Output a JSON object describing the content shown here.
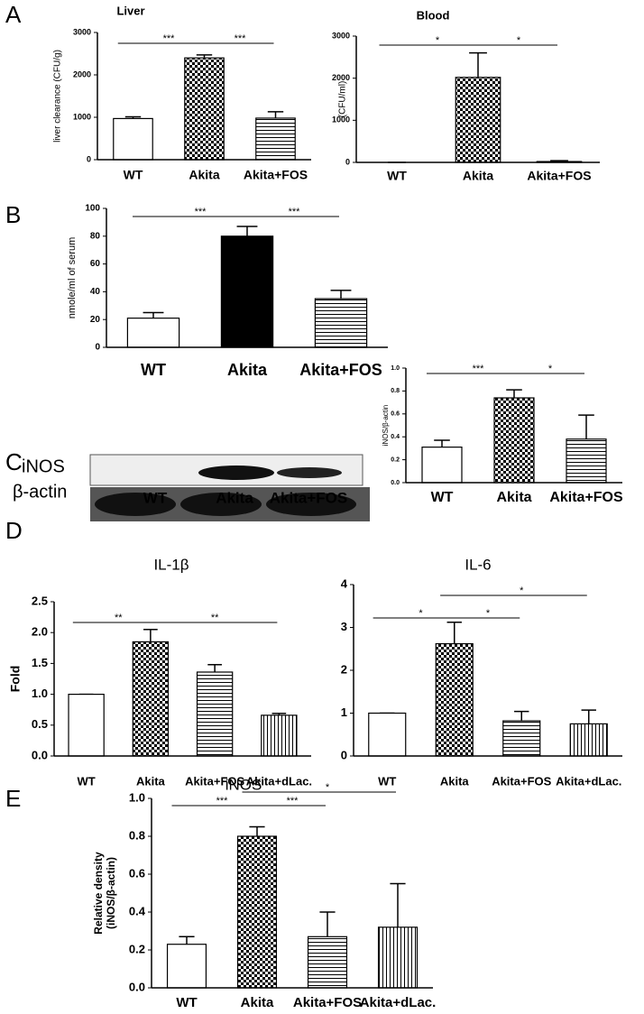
{
  "panels": [
    "A",
    "B",
    "C",
    "D",
    "E"
  ],
  "blot": {
    "rows": [
      "iNOS",
      "β-actin"
    ],
    "lanes": [
      "WT",
      "Akita",
      "Akita+FOS"
    ]
  },
  "chart_data": [
    {
      "type": "bar",
      "title": "Liver",
      "ylabel": "liver clearance (CFU/g)",
      "categories": [
        "WT",
        "Akita",
        "Akita+FOS"
      ],
      "values": [
        970,
        2400,
        980
      ],
      "errors": [
        40,
        70,
        150
      ],
      "fills": [
        "white",
        "checker",
        "hlines"
      ],
      "ylim": [
        0,
        3000
      ],
      "yticks": [
        0,
        1000,
        2000,
        3000
      ],
      "annotations": [
        {
          "text": "***",
          "between": [
            "WT",
            "Akita"
          ]
        },
        {
          "text": "***",
          "between": [
            "Akita",
            "Akita+FOS"
          ]
        }
      ]
    },
    {
      "type": "bar",
      "title": "Blood",
      "ylabel": "(CFU/ml)",
      "categories": [
        "WT",
        "Akita",
        "Akita+FOS"
      ],
      "values": [
        0,
        2020,
        20
      ],
      "errors": [
        0,
        580,
        20
      ],
      "fills": [
        "white",
        "checker",
        "hlines"
      ],
      "ylim": [
        0,
        3000
      ],
      "yticks": [
        0,
        1000,
        2000,
        3000
      ],
      "annotations": [
        {
          "text": "*",
          "between": [
            "WT",
            "Akita"
          ]
        },
        {
          "text": "*",
          "between": [
            "Akita",
            "Akita+FOS"
          ]
        }
      ]
    },
    {
      "type": "bar",
      "ylabel": "nmole/ml of serum",
      "categories": [
        "WT",
        "Akita",
        "Akita+FOS"
      ],
      "values": [
        21,
        80,
        35
      ],
      "errors": [
        4,
        7,
        6
      ],
      "fills": [
        "white",
        "black",
        "hlines"
      ],
      "ylim": [
        0,
        100
      ],
      "yticks": [
        0,
        20,
        40,
        60,
        80,
        100
      ],
      "annotations": [
        {
          "text": "***",
          "between": [
            "WT",
            "Akita"
          ]
        },
        {
          "text": "***",
          "between": [
            "Akita",
            "Akita+FOS"
          ]
        }
      ]
    },
    {
      "type": "bar",
      "ylabel": "iNOS/β-actin",
      "categories": [
        "WT",
        "Akita",
        "Akita+FOS"
      ],
      "values": [
        0.31,
        0.74,
        0.38
      ],
      "errors": [
        0.06,
        0.07,
        0.21
      ],
      "fills": [
        "white",
        "checker",
        "hlines"
      ],
      "ylim": [
        0,
        1.0
      ],
      "yticks": [
        {
          "value": 0,
          "label": "0.0"
        },
        0.2,
        0.4,
        0.6,
        0.8,
        {
          "value": 1,
          "label": "1.0"
        }
      ],
      "annotations": [
        {
          "text": "***",
          "between": [
            "WT",
            "Akita"
          ]
        },
        {
          "text": "*",
          "between": [
            "Akita",
            "Akita+FOS"
          ]
        }
      ]
    },
    {
      "type": "bar",
      "title": "IL-1β",
      "ylabel": "Fold",
      "categories": [
        "WT",
        "Akita",
        "Akita+FOS",
        "Akita+dLac."
      ],
      "values": [
        1.0,
        1.85,
        1.36,
        0.66
      ],
      "errors": [
        0,
        0.2,
        0.12,
        0.03
      ],
      "fills": [
        "white",
        "checker",
        "hlines",
        "vlines"
      ],
      "ylim": [
        0,
        2.5
      ],
      "yticks": [
        {
          "value": 0,
          "label": "0.0"
        },
        0.5,
        {
          "value": 1,
          "label": "1.0"
        },
        1.5,
        {
          "value": 2,
          "label": "2.0"
        },
        2.5
      ],
      "annotations": [
        {
          "text": "**",
          "between": [
            "WT",
            "Akita"
          ]
        },
        {
          "text": "**",
          "between": [
            "Akita",
            "Akita+dLac."
          ]
        }
      ]
    },
    {
      "type": "bar",
      "title": "IL-6",
      "categories": [
        "WT",
        "Akita",
        "Akita+FOS",
        "Akita+dLac."
      ],
      "values": [
        1,
        2.62,
        0.82,
        0.75
      ],
      "errors": [
        0,
        0.5,
        0.22,
        0.32
      ],
      "fills": [
        "white",
        "checker",
        "hlines",
        "vlines"
      ],
      "ylim": [
        0,
        4
      ],
      "yticks": [
        0,
        1,
        2,
        3,
        4
      ],
      "annotations": [
        {
          "text": "*",
          "between": [
            "WT",
            "Akita"
          ]
        },
        {
          "text": "*",
          "between": [
            "Akita",
            "Akita+FOS"
          ]
        },
        {
          "text": "*",
          "between": [
            "Akita",
            "Akita+dLac."
          ]
        }
      ]
    },
    {
      "type": "bar",
      "title": "iNOS",
      "ylabel": [
        "Relative density",
        "(iNOS/β-actin)"
      ],
      "categories": [
        "WT",
        "Akita",
        "Akita+FOS",
        "Akita+dLac."
      ],
      "values": [
        0.23,
        0.8,
        0.27,
        0.32
      ],
      "errors": [
        0.04,
        0.05,
        0.13,
        0.23
      ],
      "fills": [
        "white",
        "checker",
        "hlines",
        "vlines"
      ],
      "ylim": [
        0,
        1.0
      ],
      "yticks": [
        {
          "value": 0,
          "label": "0.0"
        },
        0.2,
        0.4,
        0.6,
        0.8,
        {
          "value": 1,
          "label": "1.0"
        }
      ],
      "annotations": [
        {
          "text": "***",
          "between": [
            "WT",
            "Akita"
          ]
        },
        {
          "text": "***",
          "between": [
            "Akita",
            "Akita+FOS"
          ]
        },
        {
          "text": "*",
          "between": [
            "Akita",
            "Akita+dLac."
          ]
        }
      ]
    }
  ]
}
